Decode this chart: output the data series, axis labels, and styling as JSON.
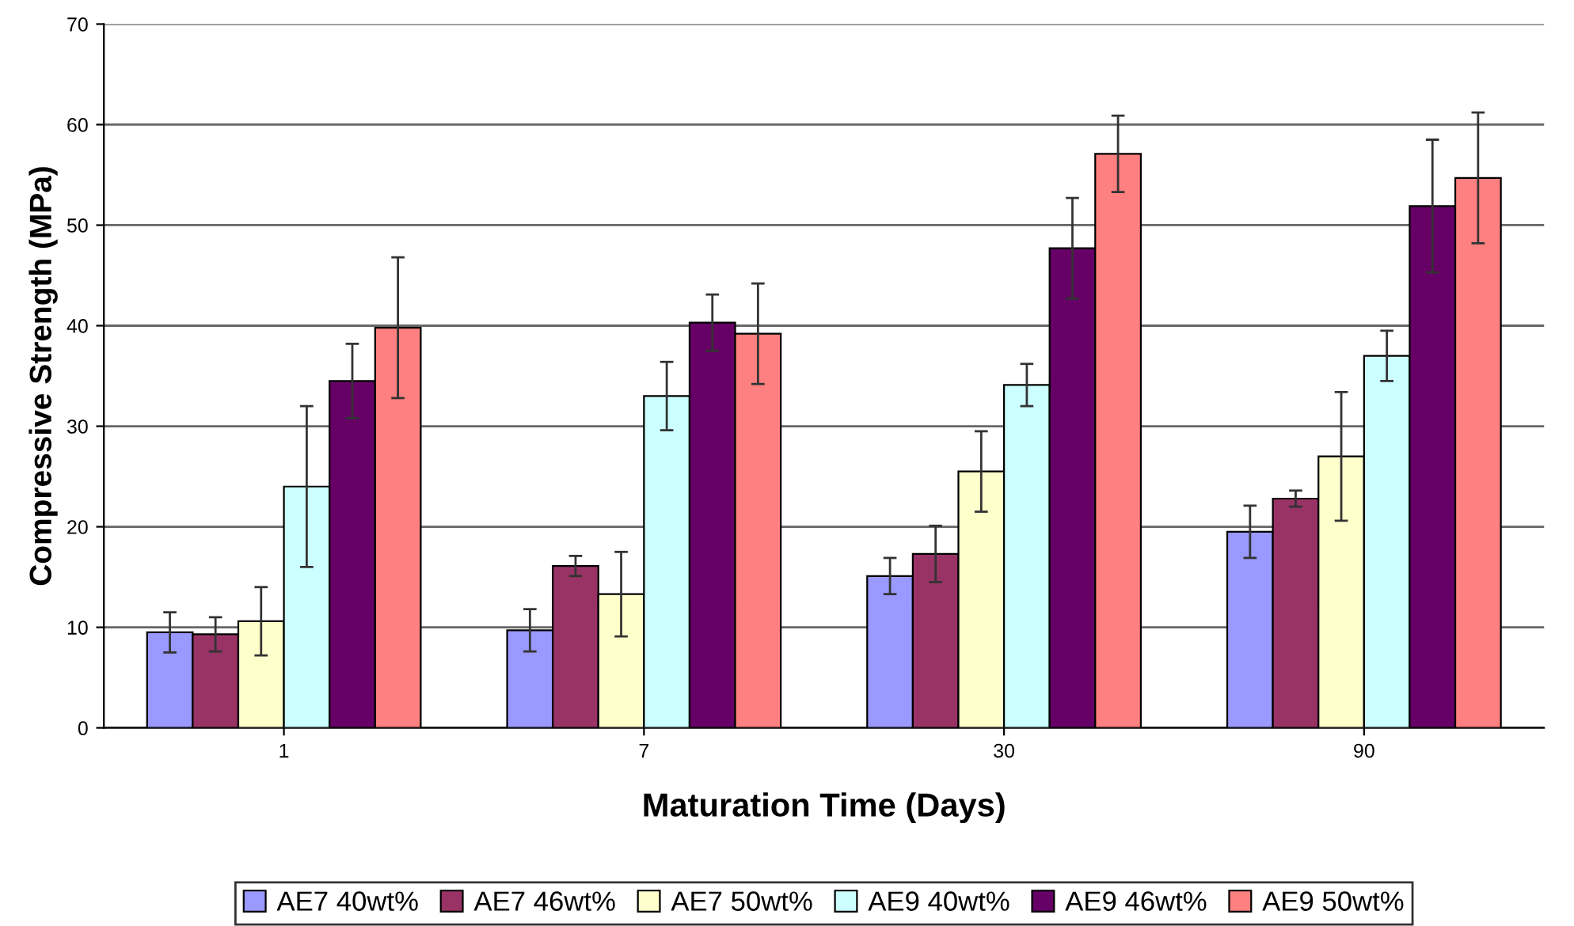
{
  "chart_data": {
    "type": "bar",
    "xlabel": "Maturation Time (Days)",
    "ylabel": "Compressive Strength (MPa)",
    "categories": [
      "1",
      "7",
      "30",
      "90"
    ],
    "series": [
      {
        "name": "AE7 40wt%",
        "color": "#9999ff",
        "values": [
          9.5,
          9.7,
          15.1,
          19.5
        ],
        "errors": [
          2,
          2.1,
          1.8,
          2.6
        ]
      },
      {
        "name": "AE7 46wt%",
        "color": "#993366",
        "values": [
          9.3,
          16.1,
          17.3,
          22.8
        ],
        "errors": [
          1.7,
          1,
          2.8,
          0.8
        ]
      },
      {
        "name": "AE7 50wt%",
        "color": "#ffffcc",
        "values": [
          10.6,
          13.3,
          25.5,
          27.0
        ],
        "errors": [
          3.4,
          4.2,
          4,
          6.4
        ]
      },
      {
        "name": "AE9 40wt%",
        "color": "#ccffff",
        "values": [
          24.0,
          33.0,
          34.1,
          37.0
        ],
        "errors": [
          8,
          3.4,
          2.1,
          2.5
        ]
      },
      {
        "name": "AE9 46wt%",
        "color": "#660066",
        "values": [
          34.5,
          40.3,
          47.7,
          51.9
        ],
        "errors": [
          3.7,
          2.8,
          5,
          6.6
        ]
      },
      {
        "name": "AE9 50wt%",
        "color": "#ff8080",
        "values": [
          39.8,
          39.2,
          57.1,
          54.7
        ],
        "errors": [
          7,
          5,
          3.8,
          6.5
        ]
      }
    ],
    "ylim": [
      0,
      70
    ],
    "yticks": [
      0,
      10,
      20,
      30,
      40,
      50,
      60,
      70
    ],
    "grid": "y",
    "legend": "bottom"
  }
}
